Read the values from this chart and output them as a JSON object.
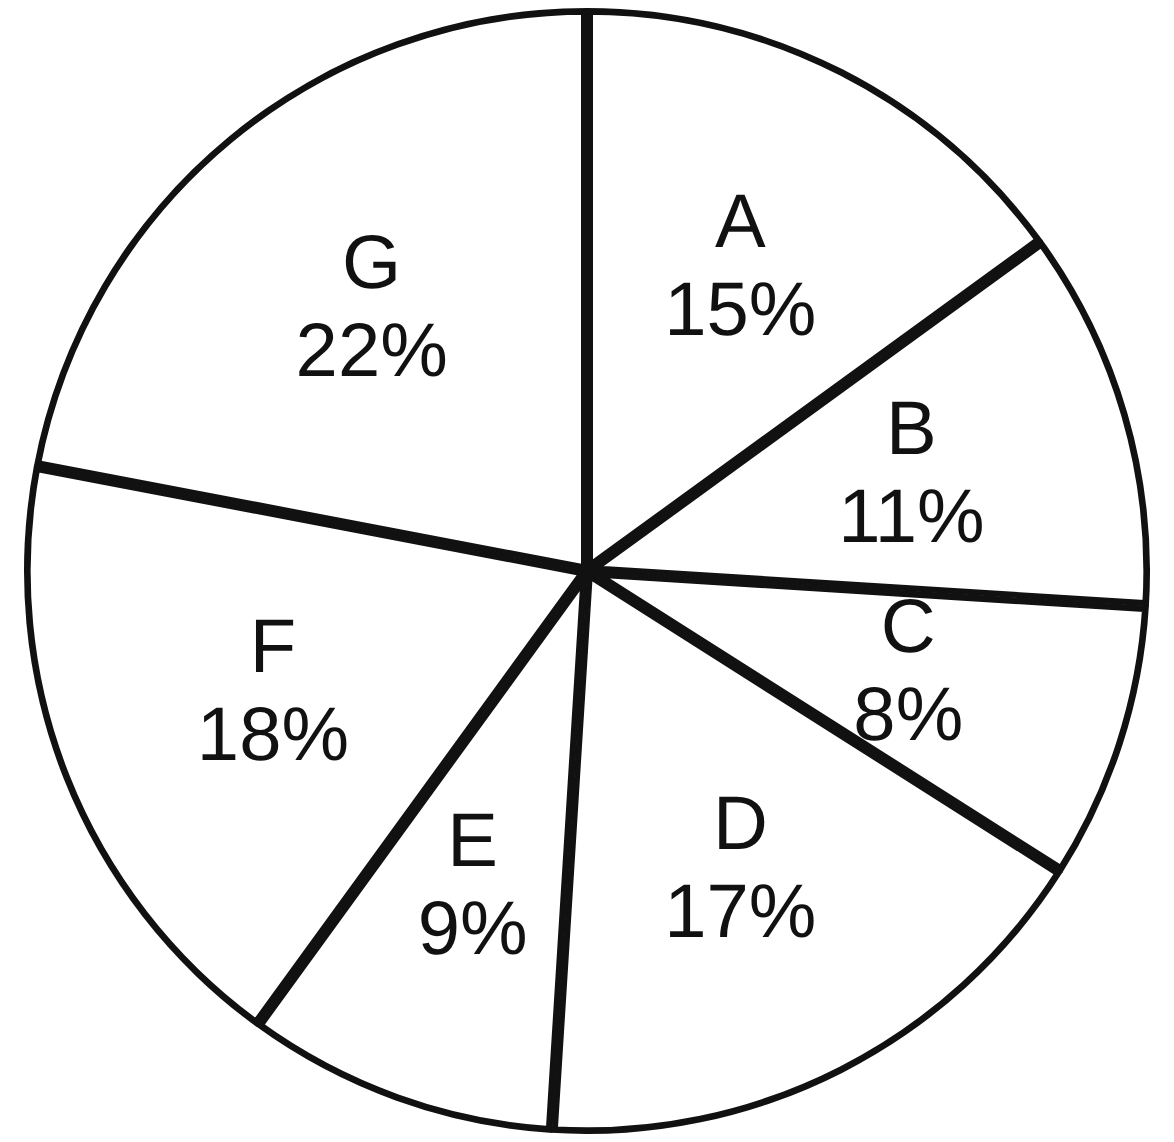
{
  "chart_data": {
    "type": "pie",
    "categories": [
      "A",
      "B",
      "C",
      "D",
      "E",
      "F",
      "G"
    ],
    "values": [
      15,
      11,
      8,
      17,
      9,
      18,
      22
    ],
    "colors": [
      "#ffffff",
      "#ffffff",
      "#ffffff",
      "#ffffff",
      "#ffffff",
      "#ffffff",
      "#ffffff"
    ],
    "value_labels": [
      "15%",
      "11%",
      "8%",
      "17%",
      "9%",
      "18%",
      "22%"
    ],
    "legend": false
  }
}
